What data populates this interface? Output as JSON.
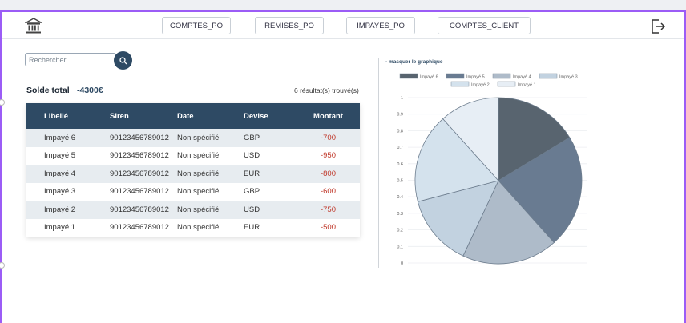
{
  "nav": {
    "buttons": [
      {
        "label": "COMPTES_PO"
      },
      {
        "label": "REMISES_PO"
      },
      {
        "label": "IMPAYES_PO"
      },
      {
        "label": "COMPTES_CLIENT"
      }
    ]
  },
  "search": {
    "placeholder": "Rechercher",
    "value": ""
  },
  "summary": {
    "solde_label": "Solde total",
    "solde_value": "-4300€",
    "results": "6 résultat(s) trouvé(s)"
  },
  "table": {
    "headers": [
      "Libellé",
      "Siren",
      "Date",
      "Devise",
      "Montant"
    ],
    "rows": [
      [
        "Impayé 6",
        "90123456789012",
        "Non spécifié",
        "GBP",
        "-700"
      ],
      [
        "Impayé 5",
        "90123456789012",
        "Non spécifié",
        "USD",
        "-950"
      ],
      [
        "Impayé 4",
        "90123456789012",
        "Non spécifié",
        "EUR",
        "-800"
      ],
      [
        "Impayé 3",
        "90123456789012",
        "Non spécifié",
        "GBP",
        "-600"
      ],
      [
        "Impayé 2",
        "90123456789012",
        "Non spécifié",
        "USD",
        "-750"
      ],
      [
        "Impayé 1",
        "90123456789012",
        "Non spécifié",
        "EUR",
        "-500"
      ]
    ]
  },
  "chart_toggle": "- masquer le graphique",
  "colors": {
    "accent": "#2e4a64",
    "frame": "#9b5cf6",
    "negative": "#c0392b"
  },
  "chart_data": {
    "type": "pie",
    "legend_position": "top",
    "categories": [
      "Impayé 6",
      "Impayé 5",
      "Impayé 4",
      "Impayé 3",
      "Impayé 2",
      "Impayé 1"
    ],
    "values": [
      700,
      950,
      800,
      600,
      750,
      500
    ],
    "colors": [
      "#58646f",
      "#697b91",
      "#aebbc9",
      "#c2d2e0",
      "#d4e2ed",
      "#e7eef5"
    ],
    "yticks": [
      "1",
      "0.9",
      "0.8",
      "0.7",
      "0.6",
      "0.5",
      "0.4",
      "0.3",
      "0.2",
      "0.1",
      "0"
    ],
    "ylim": [
      0,
      1
    ],
    "grid": true
  }
}
